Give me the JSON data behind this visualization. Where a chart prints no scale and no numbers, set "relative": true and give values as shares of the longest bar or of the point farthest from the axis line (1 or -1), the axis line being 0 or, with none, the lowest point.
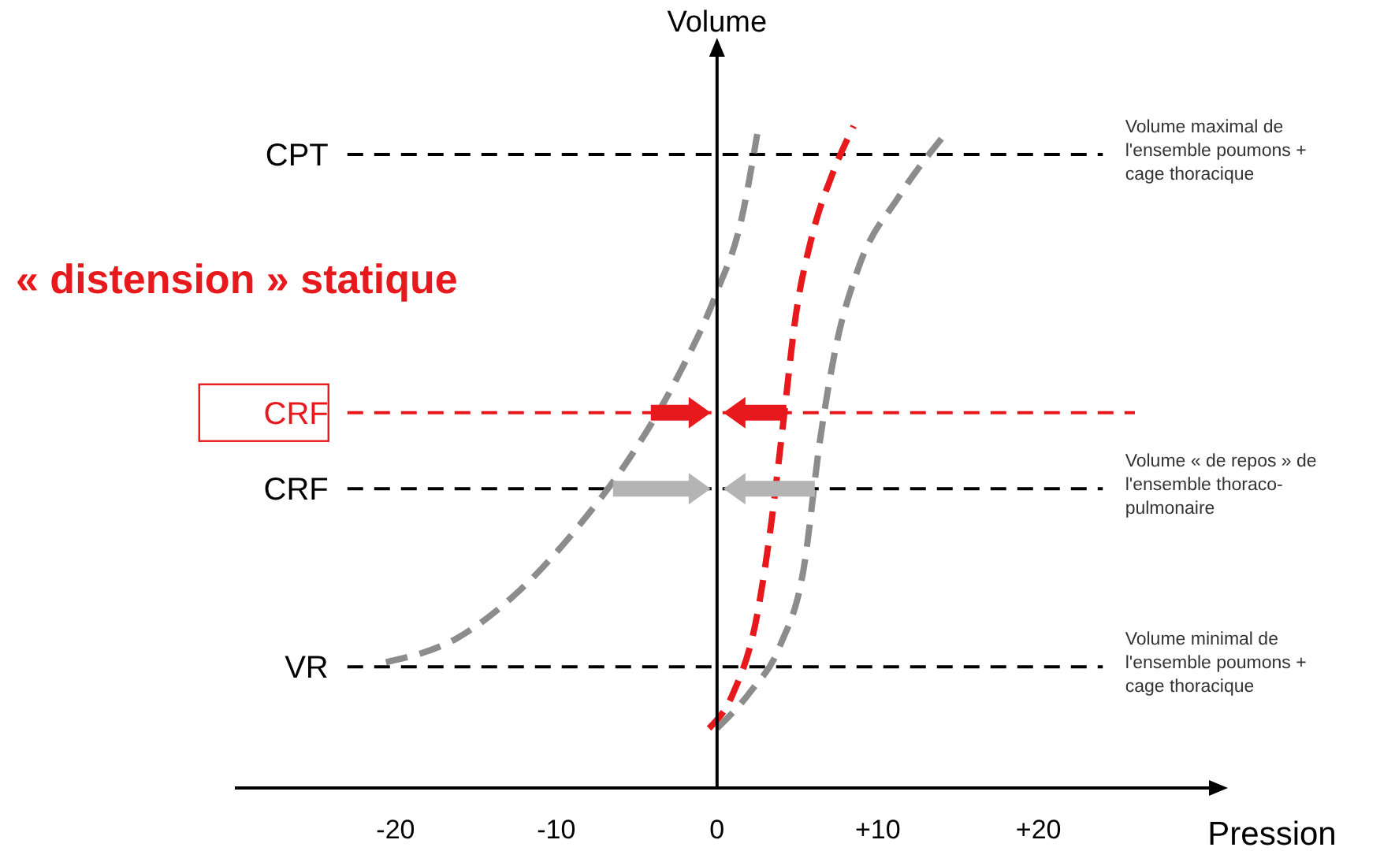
{
  "chart_data": {
    "type": "line",
    "xlabel": "Pression",
    "ylabel": "Volume",
    "relative": true,
    "xlim": [
      -30,
      31
    ],
    "xticks": [
      -20,
      -10,
      0,
      {
        "value": 10,
        "label": "+10"
      },
      {
        "value": 20,
        "label": "+20"
      }
    ],
    "line_style": "dashed",
    "marker": "none",
    "series": [
      {
        "color": "#8c8c8c",
        "x": [
          -20.6,
          -16.2,
          -12.3,
          -8.3,
          -5.4,
          -2.5,
          0,
          1.5,
          2.5
        ],
        "values": [
          0.19,
          0.226,
          0.298,
          0.405,
          0.5,
          0.619,
          0.75,
          0.857,
          0.988
        ]
      },
      {
        "color": "#e8191c",
        "x": [
          -0.5,
          1.0,
          2.5,
          3.4,
          4.1,
          4.9,
          5.9,
          7.2,
          8.5
        ],
        "values": [
          0.09,
          0.143,
          0.262,
          0.405,
          0.548,
          0.714,
          0.833,
          0.929,
          1.0
        ]
      },
      {
        "color": "#8c8c8c",
        "x": [
          0,
          2.0,
          3.9,
          5.4,
          6.4,
          7.4,
          8.8,
          11.3,
          14.2
        ],
        "values": [
          0.09,
          0.143,
          0.214,
          0.333,
          0.524,
          0.667,
          0.786,
          0.893,
          0.988
        ]
      }
    ],
    "ref_lines": [
      {
        "axis": "y",
        "value": 0.957,
        "label": "CPT"
      },
      {
        "axis": "y",
        "value": 0.567,
        "label": "CRF",
        "color": "#e8191c"
      },
      {
        "axis": "y",
        "value": 0.452,
        "label": "CRF"
      },
      {
        "axis": "y",
        "value": 0.183,
        "label": "VR"
      }
    ],
    "annotations": [
      "« distension » statique",
      "Volume maximal de\nl'ensemble poumons +\ncage thoracique",
      "Volume « de repos » de\nl'ensemble thoraco-\npulmonaire",
      "Volume minimal de\nl'ensemble poumons +\ncage thoracique"
    ]
  }
}
